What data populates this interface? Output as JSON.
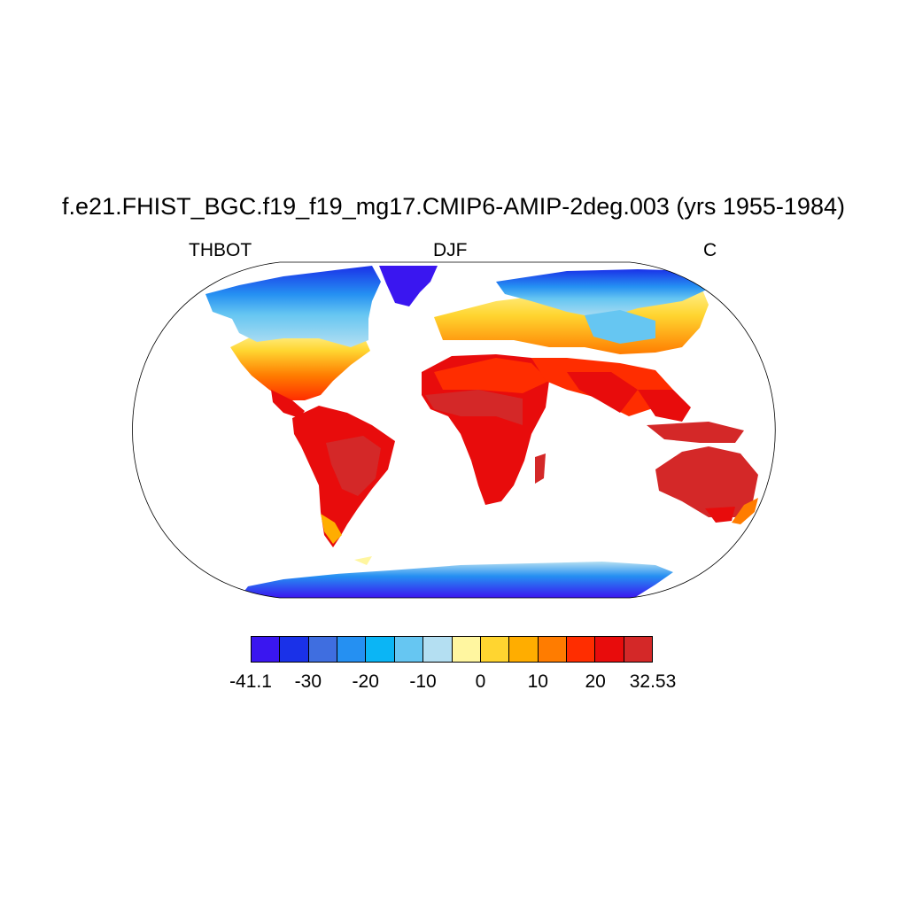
{
  "title": "f.e21.FHIST_BGC.f19_f19_mg17.CMIP6-AMIP-2deg.003 (yrs 1955-1984)",
  "left_label": "THBOT",
  "center_label": "DJF",
  "right_label": "C",
  "colorbar": {
    "colors": [
      "#3a16f0",
      "#1a31e8",
      "#3f6ee0",
      "#2590f2",
      "#0bb5f5",
      "#66c6f2",
      "#b4dff2",
      "#fff6a0",
      "#ffd530",
      "#ffad00",
      "#ff7c00",
      "#ff2d00",
      "#e80c0c",
      "#d42828"
    ],
    "labels": [
      "-41.1",
      "-30",
      "-20",
      "-10",
      "0",
      "10",
      "20",
      "32.53"
    ]
  },
  "map": {
    "projection": "Robinson",
    "variable": "THBOT",
    "season": "DJF",
    "units": "C",
    "range": [
      -41.1,
      32.53
    ]
  }
}
